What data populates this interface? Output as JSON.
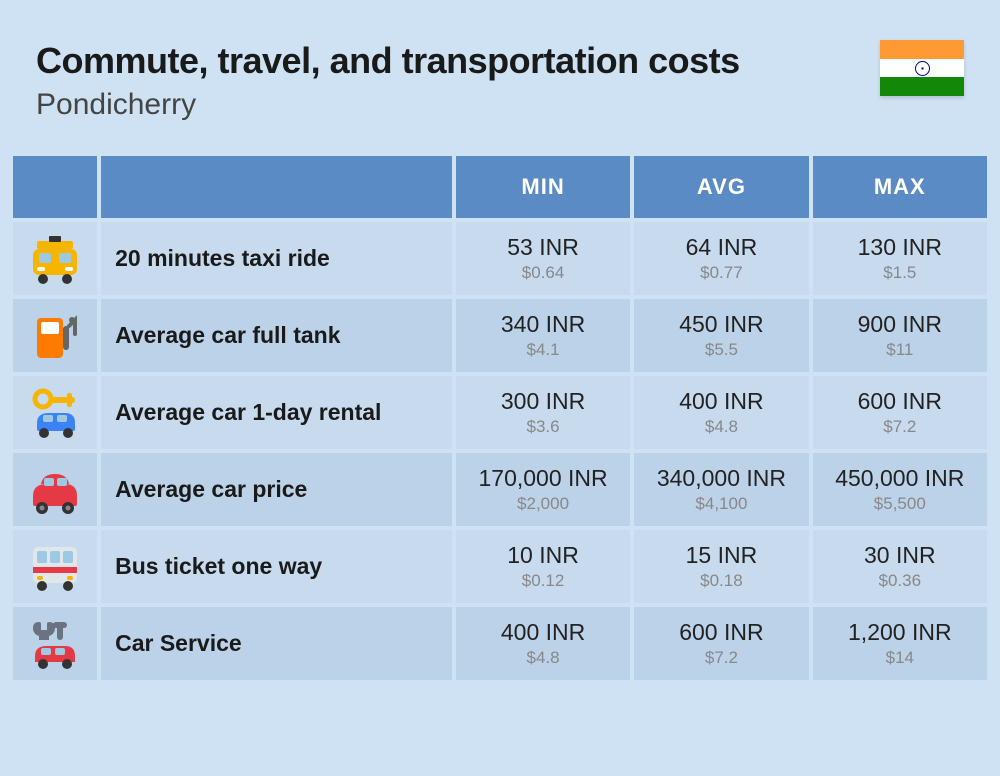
{
  "header": {
    "title": "Commute, travel, and transportation costs",
    "subtitle": "Pondicherry"
  },
  "columns": {
    "min": "MIN",
    "avg": "AVG",
    "max": "MAX"
  },
  "rows": [
    {
      "icon": "taxi",
      "label": "20 minutes taxi ride",
      "min_inr": "53 INR",
      "min_usd": "$0.64",
      "avg_inr": "64 INR",
      "avg_usd": "$0.77",
      "max_inr": "130 INR",
      "max_usd": "$1.5"
    },
    {
      "icon": "fuel",
      "label": "Average car full tank",
      "min_inr": "340 INR",
      "min_usd": "$4.1",
      "avg_inr": "450 INR",
      "avg_usd": "$5.5",
      "max_inr": "900 INR",
      "max_usd": "$11"
    },
    {
      "icon": "rental",
      "label": "Average car 1-day rental",
      "min_inr": "300 INR",
      "min_usd": "$3.6",
      "avg_inr": "400 INR",
      "avg_usd": "$4.8",
      "max_inr": "600 INR",
      "max_usd": "$7.2"
    },
    {
      "icon": "car",
      "label": "Average car price",
      "min_inr": "170,000 INR",
      "min_usd": "$2,000",
      "avg_inr": "340,000 INR",
      "avg_usd": "$4,100",
      "max_inr": "450,000 INR",
      "max_usd": "$5,500"
    },
    {
      "icon": "bus",
      "label": "Bus ticket one way",
      "min_inr": "10 INR",
      "min_usd": "$0.12",
      "avg_inr": "15 INR",
      "avg_usd": "$0.18",
      "max_inr": "30 INR",
      "max_usd": "$0.36"
    },
    {
      "icon": "service",
      "label": "Car Service",
      "min_inr": "400 INR",
      "min_usd": "$4.8",
      "avg_inr": "600 INR",
      "avg_usd": "$7.2",
      "max_inr": "1,200 INR",
      "max_usd": "$14"
    }
  ],
  "styling": {
    "background_color": "#cfe2f3",
    "header_bg": "#5a8bc4",
    "row_bg_a": "#c7daee",
    "row_bg_b": "#bcd2e8",
    "title_color": "#1a1a1a",
    "subtitle_color": "#444444",
    "inr_color": "#222222",
    "usd_color": "#888888",
    "title_fontsize": 36,
    "subtitle_fontsize": 30,
    "label_fontsize": 23,
    "inr_fontsize": 23,
    "usd_fontsize": 17,
    "icon_colors": {
      "taxi": "#f7b500",
      "fuel": "#ff7b00",
      "rental_car": "#3b82f6",
      "rental_key": "#f7b500",
      "car": "#e63946",
      "bus_body": "#e0e6ea",
      "bus_stripe": "#e63946",
      "service_wrench": "#6b7280",
      "service_car": "#e63946"
    },
    "flag_colors": {
      "saffron": "#ff9933",
      "white": "#ffffff",
      "green": "#138808",
      "chakra": "#000080"
    }
  }
}
